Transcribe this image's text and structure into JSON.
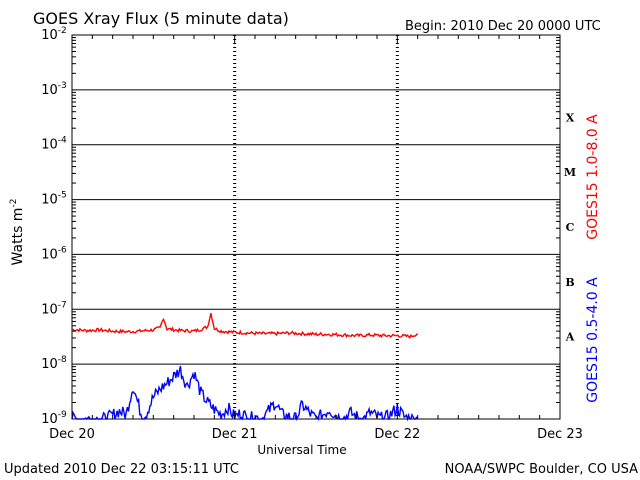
{
  "title": "GOES Xray Flux (5 minute data)",
  "begin_label": "Begin:  2010 Dec 20 0000 UTC",
  "footer_left": "Updated 2010 Dec 22 03:15:11 UTC",
  "footer_right": "NOAA/SWPC Boulder, CO USA",
  "chart_data": {
    "type": "line",
    "title": "GOES Xray Flux (5 minute data)",
    "xlabel": "Universal Time",
    "ylabel": "Watts m-2",
    "yscale": "log",
    "ylim": [
      1e-09,
      0.01
    ],
    "xlim": [
      "2010-12-20",
      "2010-12-23"
    ],
    "x_ticks": [
      {
        "label": "Dec 20",
        "date": "2010-12-20"
      },
      {
        "label": "Dec 21",
        "date": "2010-12-21"
      },
      {
        "label": "Dec 22",
        "date": "2010-12-22"
      },
      {
        "label": "Dec 23",
        "date": "2010-12-23"
      }
    ],
    "y_ticks": [
      {
        "exp": -9,
        "label": "10",
        "sup": "-9"
      },
      {
        "exp": -8,
        "label": "10",
        "sup": "-8"
      },
      {
        "exp": -7,
        "label": "10",
        "sup": "-7"
      },
      {
        "exp": -6,
        "label": "10",
        "sup": "-6"
      },
      {
        "exp": -5,
        "label": "10",
        "sup": "-5"
      },
      {
        "exp": -4,
        "label": "10",
        "sup": "-4"
      },
      {
        "exp": -3,
        "label": "10",
        "sup": "-3"
      },
      {
        "exp": -2,
        "label": "10",
        "sup": "-2"
      }
    ],
    "flare_classes": [
      {
        "label": "X",
        "exp": -3.5
      },
      {
        "label": "M",
        "exp": -4.5
      },
      {
        "label": "C",
        "exp": -5.5
      },
      {
        "label": "B",
        "exp": -6.5
      },
      {
        "label": "A",
        "exp": -7.5
      }
    ],
    "grid": "horizontal lines at each decade; dashed vertical day markers",
    "series": [
      {
        "name": "GOES15 1.0-8.0 A",
        "color": "#ff0000",
        "x_hours": [
          0,
          2,
          4,
          6,
          8,
          10,
          12,
          13,
          13.5,
          14,
          16,
          18,
          19,
          20,
          20.5,
          21,
          22,
          24,
          26,
          28,
          30,
          32,
          34,
          36,
          38,
          40,
          42,
          44,
          46,
          48,
          50,
          51
        ],
        "values": [
          4.3e-08,
          4.1e-08,
          4.2e-08,
          4e-08,
          3.9e-08,
          4e-08,
          4.2e-08,
          4.6e-08,
          7e-08,
          4.4e-08,
          4.1e-08,
          4e-08,
          4.3e-08,
          4.8e-08,
          8.5e-08,
          4.5e-08,
          4e-08,
          3.8e-08,
          3.7e-08,
          3.6e-08,
          3.6e-08,
          3.7e-08,
          3.6e-08,
          3.5e-08,
          3.5e-08,
          3.4e-08,
          3.3e-08,
          3.4e-08,
          3.3e-08,
          3.3e-08,
          3.2e-08,
          3.6e-08
        ]
      },
      {
        "name": "GOES15 0.5-4.0 A",
        "color": "#0000ff",
        "x_hours": [
          0,
          3,
          5,
          7,
          8,
          9,
          10,
          10.5,
          11,
          12,
          13,
          14,
          15,
          16,
          16.5,
          17,
          18,
          19,
          20,
          21,
          22,
          23,
          24,
          25,
          26,
          27,
          28,
          29,
          30,
          31,
          32,
          33,
          34,
          35,
          36,
          37,
          38,
          39,
          40,
          41,
          42,
          43,
          44,
          45,
          46,
          47,
          48,
          49,
          50,
          51
        ],
        "values": [
          1e-09,
          1e-09,
          1e-09,
          1.4e-09,
          1.2e-09,
          4e-09,
          1.5e-09,
          1e-09,
          1.3e-09,
          2.5e-09,
          3.5e-09,
          4.5e-09,
          6e-09,
          8e-09,
          5.5e-09,
          4e-09,
          7e-09,
          3e-09,
          2e-09,
          1.5e-09,
          1.2e-09,
          1.6e-09,
          1.1e-09,
          1.3e-09,
          1e-09,
          1.1e-09,
          1e-09,
          1.4e-09,
          2e-09,
          1.2e-09,
          1.1e-09,
          1e-09,
          1.8e-09,
          1.3e-09,
          1e-09,
          1.2e-09,
          1.5e-09,
          1.1e-09,
          1e-09,
          1.3e-09,
          1.1e-09,
          1e-09,
          1.3e-09,
          1.1e-09,
          1e-09,
          1.2e-09,
          1.6e-09,
          1.1e-09,
          1e-09,
          1e-09
        ]
      }
    ]
  }
}
